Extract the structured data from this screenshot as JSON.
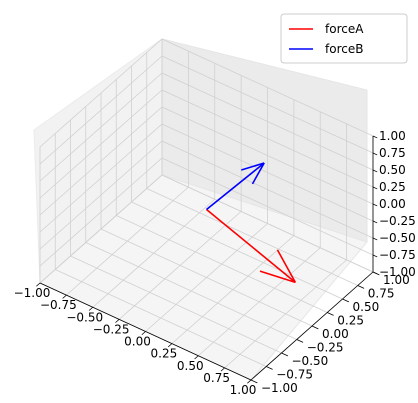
{
  "chart_data": {
    "type": "quiver3d",
    "title": "",
    "xlabel": "",
    "ylabel": "",
    "zlabel": "",
    "xlim": [
      -1,
      1
    ],
    "ylim": [
      -1,
      1
    ],
    "zlim": [
      -1,
      1
    ],
    "grid": true,
    "legend_position": "top-right",
    "x_ticks": [
      "−1.00",
      "−0.75",
      "−0.50",
      "−0.25",
      "0.00",
      "0.25",
      "0.50",
      "0.75",
      "1.00"
    ],
    "y_ticks": [
      "−1.00",
      "−0.75",
      "−0.50",
      "−0.25",
      "0.00",
      "0.25",
      "0.50",
      "0.75",
      "1.00"
    ],
    "z_ticks": [
      "−1.00",
      "−0.75",
      "−0.50",
      "−0.25",
      "0.00",
      "0.25",
      "0.50",
      "0.75",
      "1.00"
    ],
    "series": [
      {
        "name": "forceA",
        "color": "#ff0000",
        "origin": [
          0,
          0,
          0
        ],
        "vector": [
          0.9,
          -0.1,
          -0.35
        ]
      },
      {
        "name": "forceB",
        "color": "#0000ff",
        "origin": [
          0,
          0,
          0
        ],
        "vector": [
          0.2,
          0.6,
          0.35
        ]
      }
    ]
  }
}
